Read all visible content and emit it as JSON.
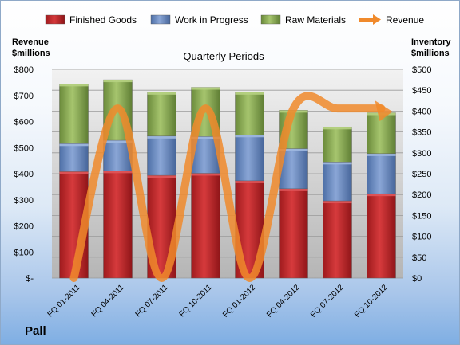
{
  "chart_data": {
    "type": "bar",
    "stacked": true,
    "title": "Quarterly Periods",
    "company": "Pall",
    "categories": [
      "FQ 01-2011",
      "FQ 04-2011",
      "FQ 07-2011",
      "FQ 10-2011",
      "FQ 01-2012",
      "FQ 04-2012",
      "FQ 07-2012",
      "FQ 10-2012"
    ],
    "series": [
      {
        "name": "Finished Goods",
        "axis": "right",
        "color": "#c0262b",
        "values": [
          255,
          257,
          246,
          251,
          233,
          214,
          185,
          202
        ]
      },
      {
        "name": "Work in Progress",
        "axis": "right",
        "color": "#6f8fc6",
        "values": [
          67,
          73,
          94,
          88,
          110,
          96,
          93,
          96
        ]
      },
      {
        "name": "Raw Materials",
        "axis": "right",
        "color": "#8db157",
        "values": [
          143,
          145,
          105,
          118,
          102,
          92,
          84,
          98
        ]
      }
    ],
    "line_series": {
      "name": "Revenue",
      "axis": "left",
      "color": "#f08a2c",
      "values": [
        0,
        650,
        0,
        650,
        0,
        650,
        650,
        650
      ]
    },
    "left_axis": {
      "label": "Revenue\n$millions",
      "ylim": [
        0,
        800
      ],
      "ticks": [
        "$-",
        "$100",
        "$200",
        "$300",
        "$400",
        "$500",
        "$600",
        "$700",
        "$800"
      ]
    },
    "right_axis": {
      "label": "Inventory\n$millions",
      "ylim": [
        0,
        500
      ],
      "ticks": [
        "$0",
        "$50",
        "$100",
        "$150",
        "$200",
        "$250",
        "$300",
        "$350",
        "$400",
        "$450",
        "$500"
      ]
    },
    "legend_position": "top",
    "grid": true
  }
}
